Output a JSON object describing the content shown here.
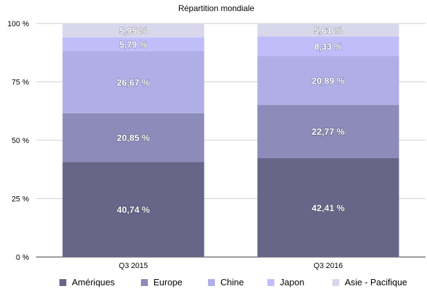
{
  "chart_data": {
    "type": "bar",
    "stacked": true,
    "title": "Répartition mondiale",
    "categories": [
      "Q3 2015",
      "Q3 2016"
    ],
    "ylim": [
      0,
      100
    ],
    "yticks": [
      "0 %",
      "25 %",
      "50 %",
      "75 %",
      "100 %"
    ],
    "ytick_values": [
      0,
      25,
      50,
      75,
      100
    ],
    "grid": true,
    "legend_position": "bottom",
    "series": [
      {
        "name": "Amériques",
        "values": [
          40.74,
          42.41
        ],
        "labels": [
          "40,74 %",
          "42,41 %"
        ],
        "color": "#676689"
      },
      {
        "name": "Europe",
        "values": [
          20.85,
          22.77
        ],
        "labels": [
          "20,85 %",
          "22,77 %"
        ],
        "color": "#8d8bb9"
      },
      {
        "name": "Chine",
        "values": [
          26.67,
          20.89
        ],
        "labels": [
          "26,67 %",
          "20,89 %"
        ],
        "color": "#afaee6"
      },
      {
        "name": "Japon",
        "values": [
          5.79,
          8.33
        ],
        "labels": [
          "5,79 %",
          "8,33 %"
        ],
        "color": "#c0bdfb"
      },
      {
        "name": "Asie - Pacifique",
        "values": [
          5.95,
          5.61
        ],
        "labels": [
          "5,95 %",
          "5,61 %"
        ],
        "color": "#d8d7ec"
      }
    ]
  }
}
